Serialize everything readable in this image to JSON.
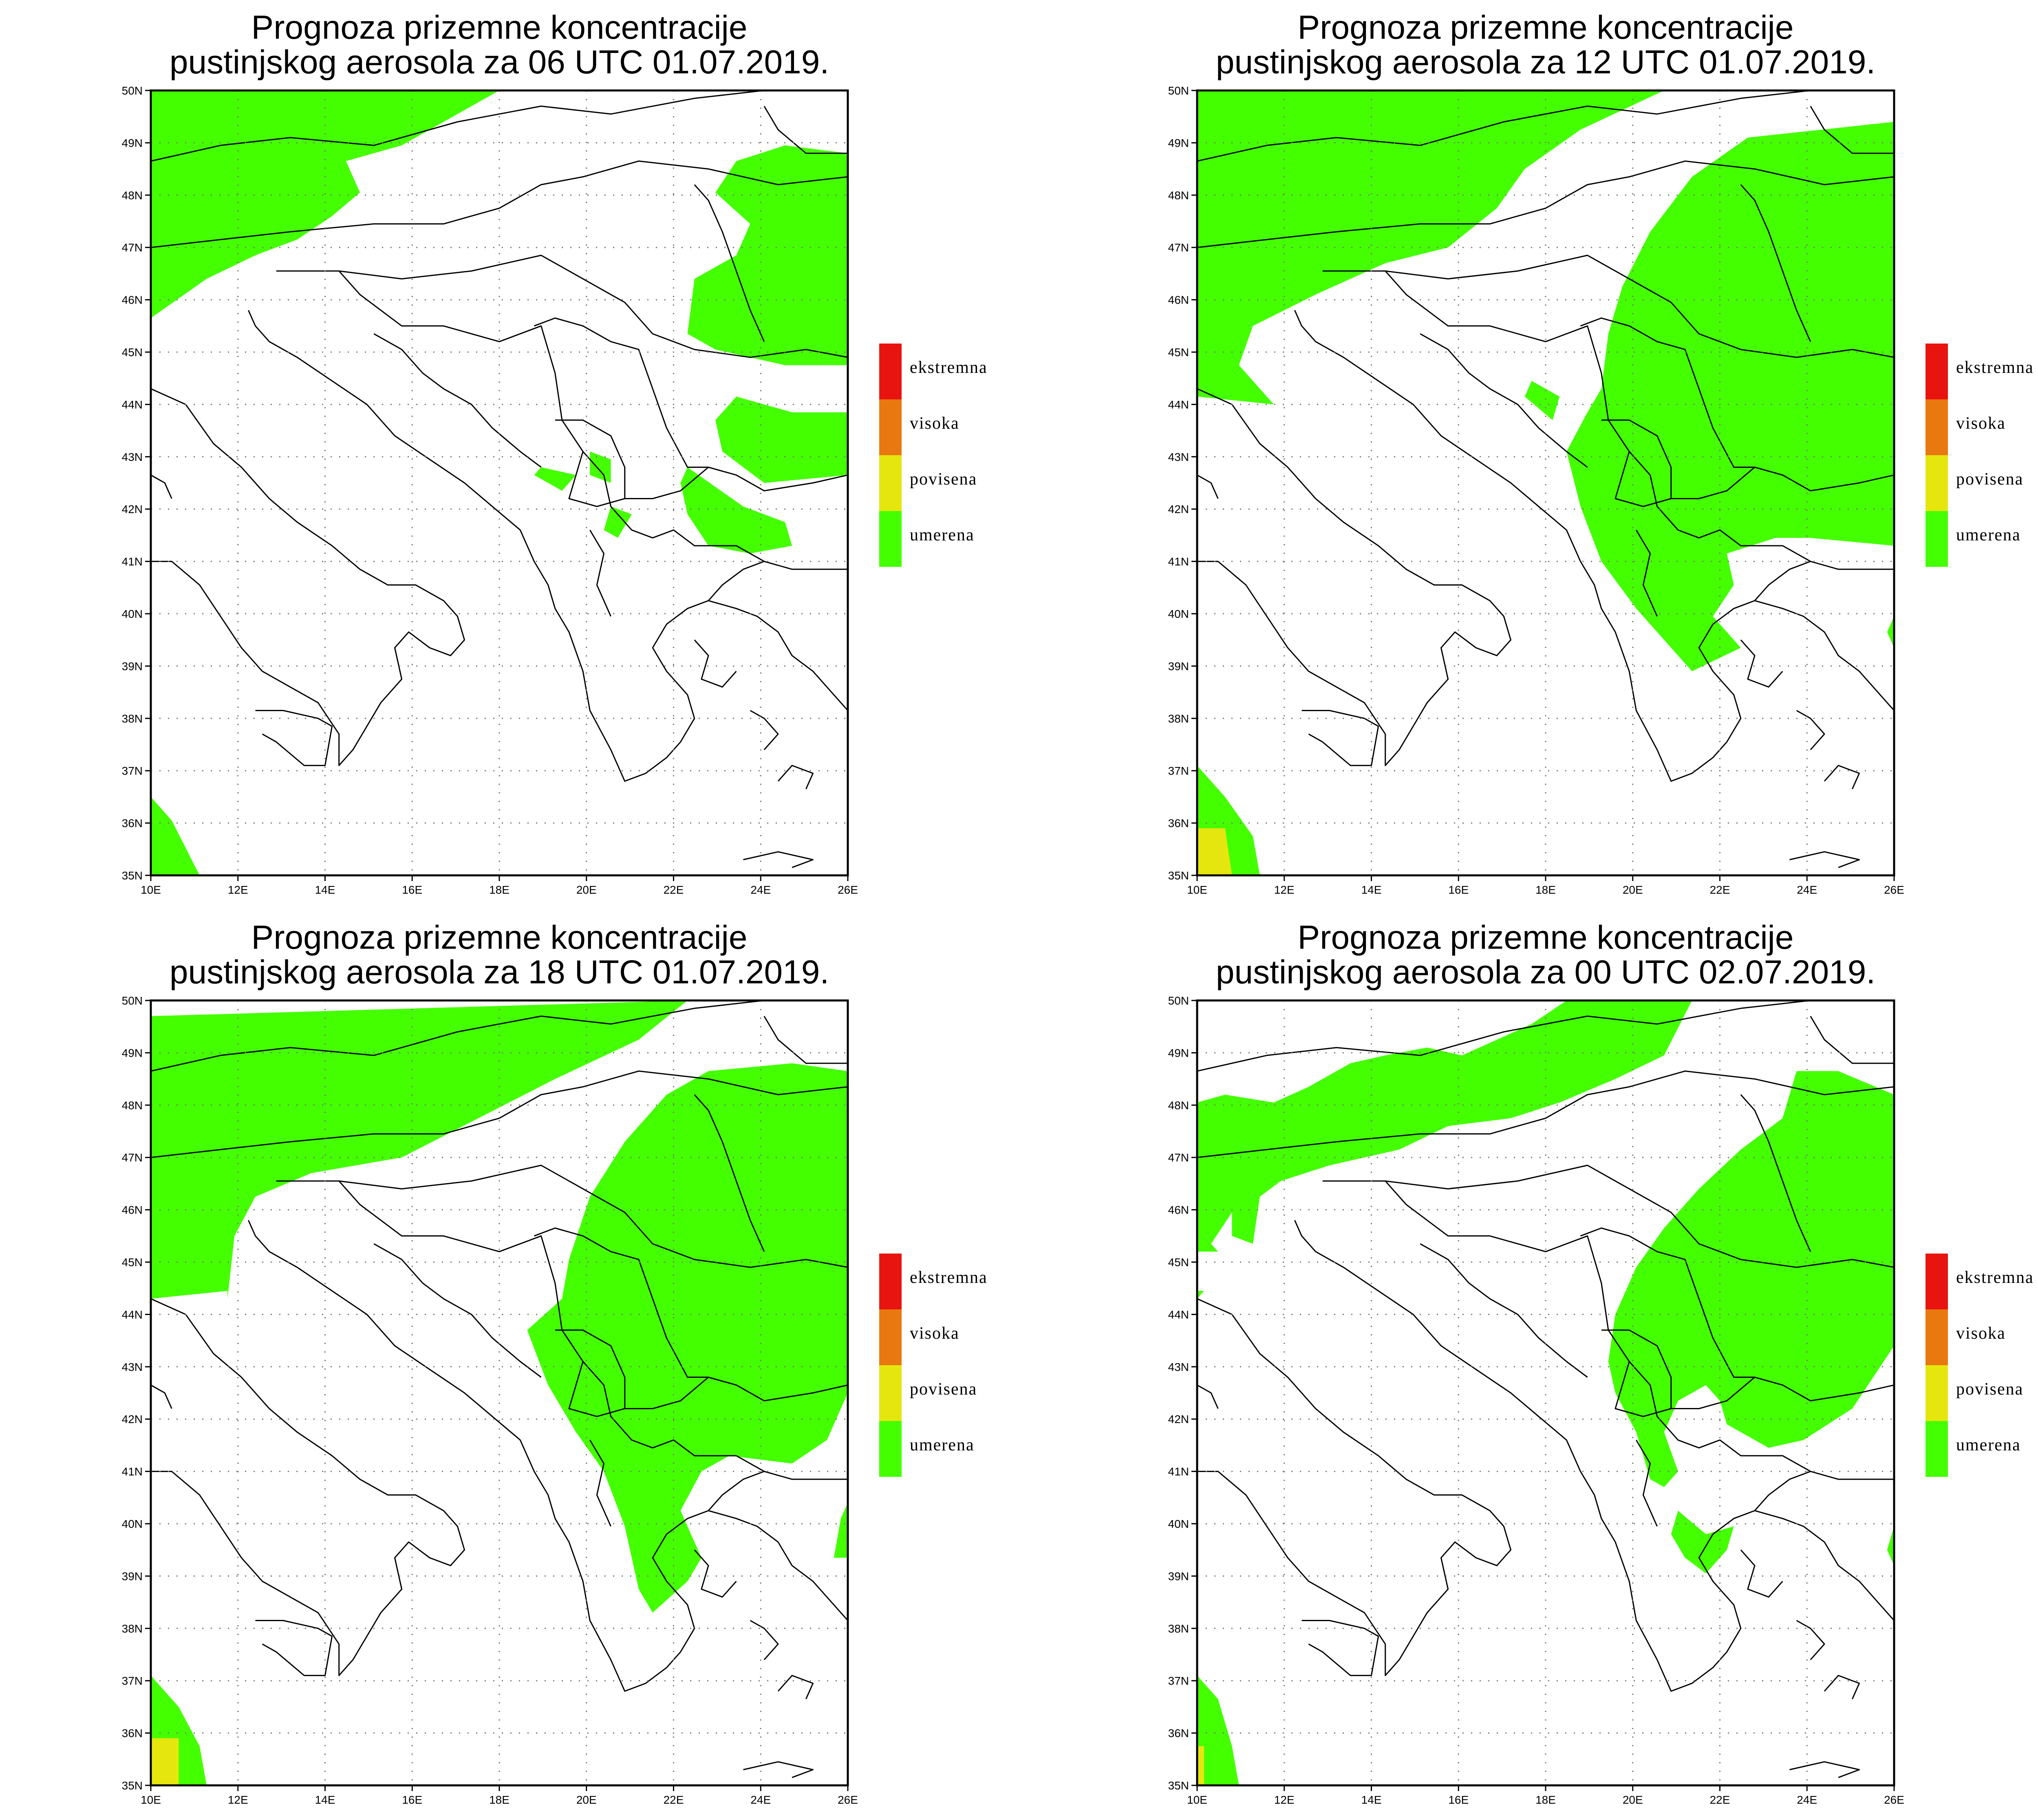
{
  "panels": [
    {
      "title_line1": "Prognoza prizemne koncentracije",
      "title_line2": "pustinjskog aerosola za 06 UTC 01.07.2019."
    },
    {
      "title_line1": "Prognoza prizemne koncentracije",
      "title_line2": "pustinjskog aerosola za 12 UTC 01.07.2019."
    },
    {
      "title_line1": "Prognoza prizemne koncentracije",
      "title_line2": "pustinjskog aerosola za 18 UTC 01.07.2019."
    },
    {
      "title_line1": "Prognoza prizemne koncentracije",
      "title_line2": "pustinjskog aerosola za 00 UTC 02.07.2019."
    }
  ],
  "lat_labels": [
    "35N",
    "36N",
    "37N",
    "38N",
    "39N",
    "40N",
    "41N",
    "42N",
    "43N",
    "44N",
    "45N",
    "46N",
    "47N",
    "48N",
    "49N",
    "50N"
  ],
  "lon_labels": [
    "10E",
    "12E",
    "14E",
    "16E",
    "18E",
    "20E",
    "22E",
    "24E",
    "26E"
  ],
  "legend": [
    {
      "label": "ekstremna",
      "color": "#e8140f"
    },
    {
      "label": "visoka",
      "color": "#e8780f"
    },
    {
      "label": "povisena",
      "color": "#e6e60f"
    },
    {
      "label": "umerena",
      "color": "#44ff00"
    }
  ],
  "colors": {
    "umerena": "#44ff00",
    "povisena": "#e6e60f",
    "grid": "#777777",
    "border": "#000000"
  }
}
